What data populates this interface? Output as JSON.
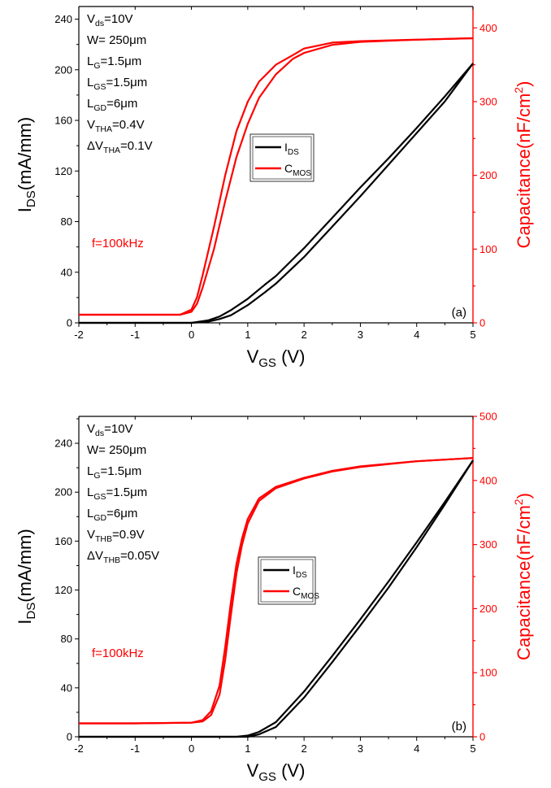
{
  "colors": {
    "ids": "#000000",
    "cmos": "#ff0000",
    "axis_left": "#000000",
    "axis_right": "#ff0000"
  },
  "chart_data": [
    {
      "type": "line",
      "panel_label": "(a)",
      "xlabel_main": "V",
      "xlabel_sub": "GS",
      "xlabel_tail": " (V)",
      "ylabel_main": "I",
      "ylabel_sub": "DS",
      "ylabel_tail": "(mA/mm)",
      "y2label_main": "Capacitance(nF/cm",
      "y2label_sup": "2",
      "y2label_tail": ")",
      "xlim": [
        -2,
        5
      ],
      "ylim": [
        0,
        250
      ],
      "y2lim": [
        0,
        429
      ],
      "xticks": [
        "-2",
        "-1",
        "0",
        "1",
        "2",
        "3",
        "4",
        "5"
      ],
      "yticks": [
        "0",
        "40",
        "80",
        "120",
        "160",
        "200",
        "240"
      ],
      "y2ticks": [
        "0",
        "100",
        "200",
        "300",
        "400"
      ],
      "params": [
        {
          "main": "V",
          "sub": "ds",
          "rest": "=10V"
        },
        {
          "main": "W= 250μm",
          "sub": "",
          "rest": ""
        },
        {
          "main": "L",
          "sub": "G",
          "rest": "=1.5μm"
        },
        {
          "main": "L",
          "sub": "GS",
          "rest": "=1.5μm"
        },
        {
          "main": "L",
          "sub": "GD",
          "rest": "=6μm"
        },
        {
          "main": "V",
          "sub": "THA",
          "rest": "=0.4V"
        },
        {
          "main": "ΔV",
          "sub": "THA",
          "rest": "=0.1V"
        }
      ],
      "freq_label": "f=100kHz",
      "legend": [
        {
          "main": "I",
          "sub": "DS",
          "color": "#000000"
        },
        {
          "main": "C",
          "sub": "MOS",
          "color": "#ff0000"
        }
      ],
      "series": [
        {
          "name": "I_DS",
          "axis": "left",
          "color": "#000000",
          "x": [
            -2,
            -1,
            0,
            0.3,
            0.5,
            0.7,
            1.0,
            1.3,
            1.5,
            2.0,
            2.5,
            3.0,
            3.5,
            4.0,
            4.5,
            5.0
          ],
          "y": [
            0,
            0,
            0,
            2,
            5,
            10,
            19,
            30,
            37,
            59,
            83,
            107,
            130,
            154,
            179,
            205
          ],
          "y_alt": [
            0,
            0,
            0,
            1,
            3,
            6,
            14,
            24,
            31,
            52,
            76,
            100,
            125,
            150,
            175,
            205
          ]
        },
        {
          "name": "C_MOS",
          "axis": "right",
          "color": "#ff0000",
          "x": [
            -2,
            -1,
            -0.2,
            0,
            0.1,
            0.2,
            0.4,
            0.6,
            0.8,
            1.0,
            1.2,
            1.5,
            1.8,
            2.0,
            2.5,
            3.0,
            4.0,
            5.0
          ],
          "y": [
            11,
            11,
            11,
            18,
            35,
            65,
            130,
            200,
            260,
            300,
            327,
            350,
            363,
            372,
            380,
            382,
            384,
            386
          ],
          "y_alt": [
            11,
            11,
            11,
            15,
            26,
            48,
            100,
            165,
            225,
            270,
            305,
            337,
            358,
            366,
            377,
            381,
            384,
            386
          ]
        }
      ]
    },
    {
      "type": "line",
      "panel_label": "(b)",
      "xlabel_main": "V",
      "xlabel_sub": "GS",
      "xlabel_tail": " (V)",
      "ylabel_main": "I",
      "ylabel_sub": "DS",
      "ylabel_tail": "(mA/mm)",
      "y2label_main": "Capacitance(nF/cm",
      "y2label_sup": "2",
      "y2label_tail": ")",
      "xlim": [
        -2,
        5
      ],
      "ylim": [
        0,
        262
      ],
      "y2lim": [
        0,
        500
      ],
      "xticks": [
        "-2",
        "-1",
        "0",
        "1",
        "2",
        "3",
        "4",
        "5"
      ],
      "yticks": [
        "0",
        "40",
        "80",
        "120",
        "160",
        "200",
        "240"
      ],
      "y2ticks": [
        "0",
        "100",
        "200",
        "300",
        "400",
        "500"
      ],
      "params": [
        {
          "main": "V",
          "sub": "ds",
          "rest": "=10V"
        },
        {
          "main": "W= 250μm",
          "sub": "",
          "rest": ""
        },
        {
          "main": "L",
          "sub": "G",
          "rest": "=1.5μm"
        },
        {
          "main": "L",
          "sub": "GS",
          "rest": "=1.5μm"
        },
        {
          "main": "L",
          "sub": "GD",
          "rest": "=6μm"
        },
        {
          "main": "V",
          "sub": "THB",
          "rest": "=0.9V"
        },
        {
          "main": "ΔV",
          "sub": "THB",
          "rest": "=0.05V"
        }
      ],
      "freq_label": "f=100kHz",
      "legend": [
        {
          "main": "I",
          "sub": "DS",
          "color": "#000000"
        },
        {
          "main": "C",
          "sub": "MOS",
          "color": "#ff0000"
        }
      ],
      "series": [
        {
          "name": "I_DS",
          "axis": "left",
          "color": "#000000",
          "x": [
            -2,
            -1,
            0,
            0.8,
            1.0,
            1.2,
            1.5,
            2.0,
            2.5,
            3.0,
            3.5,
            4.0,
            4.5,
            5.0
          ],
          "y": [
            0,
            0,
            0,
            0,
            1,
            4,
            12,
            37,
            66,
            96,
            127,
            159,
            192,
            226
          ],
          "y_alt": [
            0,
            0,
            0,
            0,
            0,
            2,
            8,
            32,
            61,
            91,
            122,
            155,
            190,
            226
          ]
        },
        {
          "name": "C_MOS",
          "axis": "right",
          "color": "#ff0000",
          "x": [
            -2,
            -1,
            0,
            0.2,
            0.35,
            0.5,
            0.6,
            0.7,
            0.8,
            0.9,
            1.0,
            1.2,
            1.5,
            2.0,
            2.5,
            3.0,
            4.0,
            5.0
          ],
          "y": [
            21,
            21,
            22,
            26,
            40,
            80,
            140,
            210,
            270,
            310,
            340,
            372,
            390,
            404,
            415,
            422,
            430,
            435
          ],
          "y_alt": [
            21,
            21,
            22,
            24,
            34,
            66,
            120,
            190,
            255,
            300,
            333,
            368,
            388,
            403,
            414,
            421,
            430,
            435
          ]
        }
      ]
    }
  ]
}
